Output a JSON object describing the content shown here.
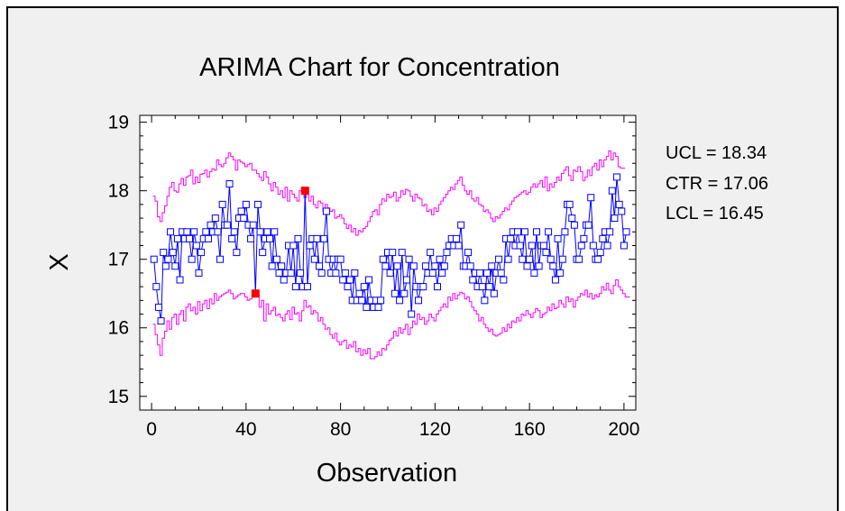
{
  "chart_data": {
    "type": "line",
    "title": "ARIMA Chart for Concentration",
    "xlabel": "Observation",
    "ylabel": "X",
    "xlim": [
      -5,
      205
    ],
    "ylim": [
      14.8,
      19.1
    ],
    "x_ticks": [
      0,
      40,
      80,
      120,
      160,
      200
    ],
    "y_ticks": [
      15,
      16,
      17,
      18,
      19
    ],
    "grid": false,
    "stats": [
      {
        "label": "UCL = 18.34"
      },
      {
        "label": "CTR = 17.06"
      },
      {
        "label": "LCL = 16.45"
      }
    ],
    "series": [
      {
        "values": [
          17.0,
          16.6,
          16.3,
          16.1,
          17.1,
          16.9,
          17.0,
          17.4,
          17.1,
          16.9,
          17.3,
          16.7,
          17.4,
          17.3,
          17.4,
          17.3,
          17.0,
          17.4,
          17.2,
          16.8,
          17.1,
          17.3,
          17.4,
          17.3,
          17.5,
          17.4,
          17.6,
          17.4,
          17.0,
          17.8,
          17.5,
          17.5,
          18.1,
          17.3,
          17.4,
          17.1,
          17.6,
          17.7,
          17.6,
          17.8,
          17.5,
          17.3,
          17.5,
          16.5,
          17.8,
          17.4,
          17.1,
          17.3,
          17.4,
          17.3,
          16.9,
          17.4,
          17.0,
          16.8,
          16.9,
          16.7,
          16.8,
          17.2,
          16.8,
          17.2,
          16.6,
          17.3,
          16.8,
          16.6,
          18.0,
          16.6,
          17.2,
          17.3,
          17.0,
          17.3,
          16.9,
          16.8,
          17.3,
          17.7,
          17.0,
          16.8,
          17.0,
          16.8,
          17.0,
          17.0,
          16.7,
          16.8,
          16.6,
          16.7,
          16.4,
          16.8,
          16.4,
          16.5,
          16.4,
          16.6,
          16.3,
          16.7,
          16.4,
          16.3,
          16.4,
          16.3,
          16.4,
          17.0,
          16.9,
          17.1,
          16.8,
          17.1,
          16.5,
          16.9,
          16.4,
          17.1,
          16.5,
          16.7,
          17.0,
          16.2,
          16.9,
          16.6,
          16.4,
          16.6,
          16.6,
          16.9,
          16.8,
          17.1,
          16.8,
          16.9,
          16.6,
          17.0,
          16.8,
          16.9,
          17.1,
          17.2,
          17.3,
          17.2,
          17.3,
          17.2,
          17.5,
          16.9,
          16.9,
          17.1,
          16.9,
          16.7,
          16.8,
          16.6,
          16.8,
          16.6,
          16.4,
          16.8,
          16.6,
          16.9,
          16.5,
          16.8,
          17.0,
          16.8,
          16.7,
          17.3,
          17.0,
          17.3,
          17.4,
          17.2,
          17.4,
          17.2,
          17.0,
          17.4,
          16.9,
          17.0,
          17.2,
          16.8,
          17.4,
          16.9,
          17.2,
          17.2,
          17.1,
          17.4,
          17.0,
          16.9,
          16.7,
          17.3,
          16.8,
          17.0,
          17.4,
          17.8,
          17.8,
          17.6,
          17.5,
          17.0,
          17.0,
          17.2,
          17.3,
          17.5,
          17.5,
          17.9,
          17.2,
          17.0,
          17.0,
          17.1,
          17.3,
          17.4,
          17.2,
          17.4,
          18.0,
          17.6,
          18.2,
          17.8,
          17.7,
          17.2,
          17.4
        ]
      },
      {
        "name": "Upper control limit",
        "values": [
          17.92,
          17.85,
          17.62,
          17.55,
          17.68,
          17.78,
          17.92,
          18.05,
          18.12,
          18.0,
          17.98,
          18.1,
          18.18,
          18.08,
          18.2,
          18.22,
          18.3,
          18.1,
          18.2,
          18.12,
          18.24,
          18.25,
          18.3,
          18.2,
          18.28,
          18.32,
          18.3,
          18.45,
          18.38,
          18.35,
          18.4,
          18.48,
          18.55,
          18.5,
          18.45,
          18.3,
          18.45,
          18.42,
          18.4,
          18.35,
          18.38,
          18.4,
          18.3,
          18.3,
          18.25,
          18.2,
          18.15,
          18.28,
          18.2,
          18.1,
          18.0,
          18.12,
          18.05,
          17.95,
          18.0,
          17.9,
          18.05,
          17.85,
          18.0,
          17.95,
          17.9,
          17.85,
          18.0,
          18.05,
          17.9,
          17.95,
          17.85,
          17.92,
          17.8,
          17.75,
          17.85,
          17.82,
          17.7,
          17.8,
          17.75,
          17.7,
          17.72,
          17.6,
          17.62,
          17.65,
          17.6,
          17.52,
          17.45,
          17.5,
          17.4,
          17.45,
          17.35,
          17.42,
          17.4,
          17.45,
          17.48,
          17.55,
          17.62,
          17.7,
          17.72,
          17.65,
          17.8,
          17.88,
          17.85,
          17.95,
          17.9,
          17.92,
          17.98,
          17.85,
          17.9,
          18.0,
          17.95,
          18.02,
          18.0,
          17.92,
          17.85,
          17.95,
          17.9,
          17.88,
          17.78,
          17.8,
          17.7,
          17.72,
          17.65,
          17.75,
          17.7,
          17.8,
          17.85,
          17.9,
          17.95,
          18.0,
          18.05,
          18.02,
          18.1,
          18.15,
          18.2,
          18.08,
          18.0,
          17.95,
          18.0,
          17.88,
          17.85,
          17.9,
          17.8,
          17.78,
          17.7,
          17.72,
          17.68,
          17.6,
          17.55,
          17.62,
          17.6,
          17.65,
          17.7,
          17.75,
          17.72,
          17.8,
          17.85,
          17.9,
          17.92,
          17.95,
          17.98,
          18.0,
          17.95,
          17.98,
          18.05,
          18.1,
          18.05,
          18.1,
          18.15,
          18.05,
          18.2,
          18.0,
          18.1,
          18.05,
          18.12,
          18.2,
          18.15,
          18.25,
          18.3,
          18.35,
          18.22,
          18.15,
          18.3,
          18.28,
          18.35,
          18.28,
          18.15,
          18.2,
          18.3,
          18.22,
          18.35,
          18.4,
          18.3,
          18.45,
          18.35,
          18.45,
          18.5,
          18.58,
          18.45,
          18.55,
          18.5,
          18.35,
          18.33,
          18.33
        ]
      },
      {
        "name": "Lower control limit",
        "values": [
          16.05,
          15.9,
          15.75,
          15.6,
          15.85,
          15.95,
          16.1,
          15.98,
          16.15,
          16.2,
          16.05,
          16.2,
          16.25,
          16.1,
          16.3,
          16.35,
          16.25,
          16.3,
          16.2,
          16.38,
          16.25,
          16.35,
          16.4,
          16.28,
          16.42,
          16.35,
          16.5,
          16.4,
          16.45,
          16.48,
          16.5,
          16.52,
          16.55,
          16.5,
          16.42,
          16.45,
          16.48,
          16.5,
          16.5,
          16.45,
          16.4,
          16.42,
          16.5,
          16.5,
          16.48,
          16.3,
          16.4,
          16.1,
          16.35,
          16.2,
          16.25,
          16.3,
          16.18,
          16.2,
          16.15,
          16.1,
          16.2,
          16.25,
          16.12,
          16.3,
          16.2,
          16.22,
          16.1,
          16.25,
          16.4,
          16.3,
          16.32,
          16.2,
          16.25,
          16.22,
          16.1,
          16.15,
          16.05,
          15.98,
          16.0,
          15.9,
          15.85,
          15.92,
          15.8,
          15.75,
          15.8,
          15.82,
          15.7,
          15.75,
          15.72,
          15.8,
          15.65,
          15.7,
          15.6,
          15.68,
          15.62,
          15.7,
          15.55,
          15.55,
          15.58,
          15.65,
          15.6,
          15.7,
          15.68,
          15.75,
          15.82,
          15.85,
          15.95,
          15.88,
          16.0,
          15.92,
          15.98,
          16.05,
          15.9,
          16.0,
          16.1,
          16.05,
          16.2,
          16.12,
          16.15,
          16.05,
          16.1,
          16.2,
          16.15,
          16.1,
          16.2,
          16.25,
          16.3,
          16.35,
          16.3,
          16.45,
          16.4,
          16.5,
          16.42,
          16.48,
          16.52,
          16.5,
          16.42,
          16.45,
          16.38,
          16.3,
          16.25,
          16.2,
          16.1,
          16.15,
          16.05,
          16.0,
          15.95,
          15.98,
          15.9,
          15.88,
          15.9,
          15.92,
          16.0,
          15.95,
          16.05,
          16.0,
          16.1,
          16.08,
          16.15,
          16.1,
          16.2,
          16.18,
          16.25,
          16.2,
          16.15,
          16.22,
          16.28,
          16.25,
          16.15,
          16.2,
          16.22,
          16.3,
          16.25,
          16.35,
          16.28,
          16.3,
          16.4,
          16.35,
          16.3,
          16.45,
          16.38,
          16.42,
          16.3,
          16.4,
          16.45,
          16.5,
          16.48,
          16.55,
          16.45,
          16.5,
          16.42,
          16.48,
          16.45,
          16.5,
          16.6,
          16.55,
          16.65,
          16.55,
          16.5,
          16.62,
          16.7,
          16.6,
          16.55,
          16.5,
          16.45,
          16.45
        ]
      }
    ],
    "out_of_control_points": [
      {
        "x": 44,
        "y": 16.5
      },
      {
        "x": 65,
        "y": 18.0
      }
    ]
  },
  "colors": {
    "data": "#0000ff",
    "limits": "#ff00ff",
    "flag": "#ff0000",
    "panel": "#f0f0f0",
    "plot": "#ffffff"
  }
}
